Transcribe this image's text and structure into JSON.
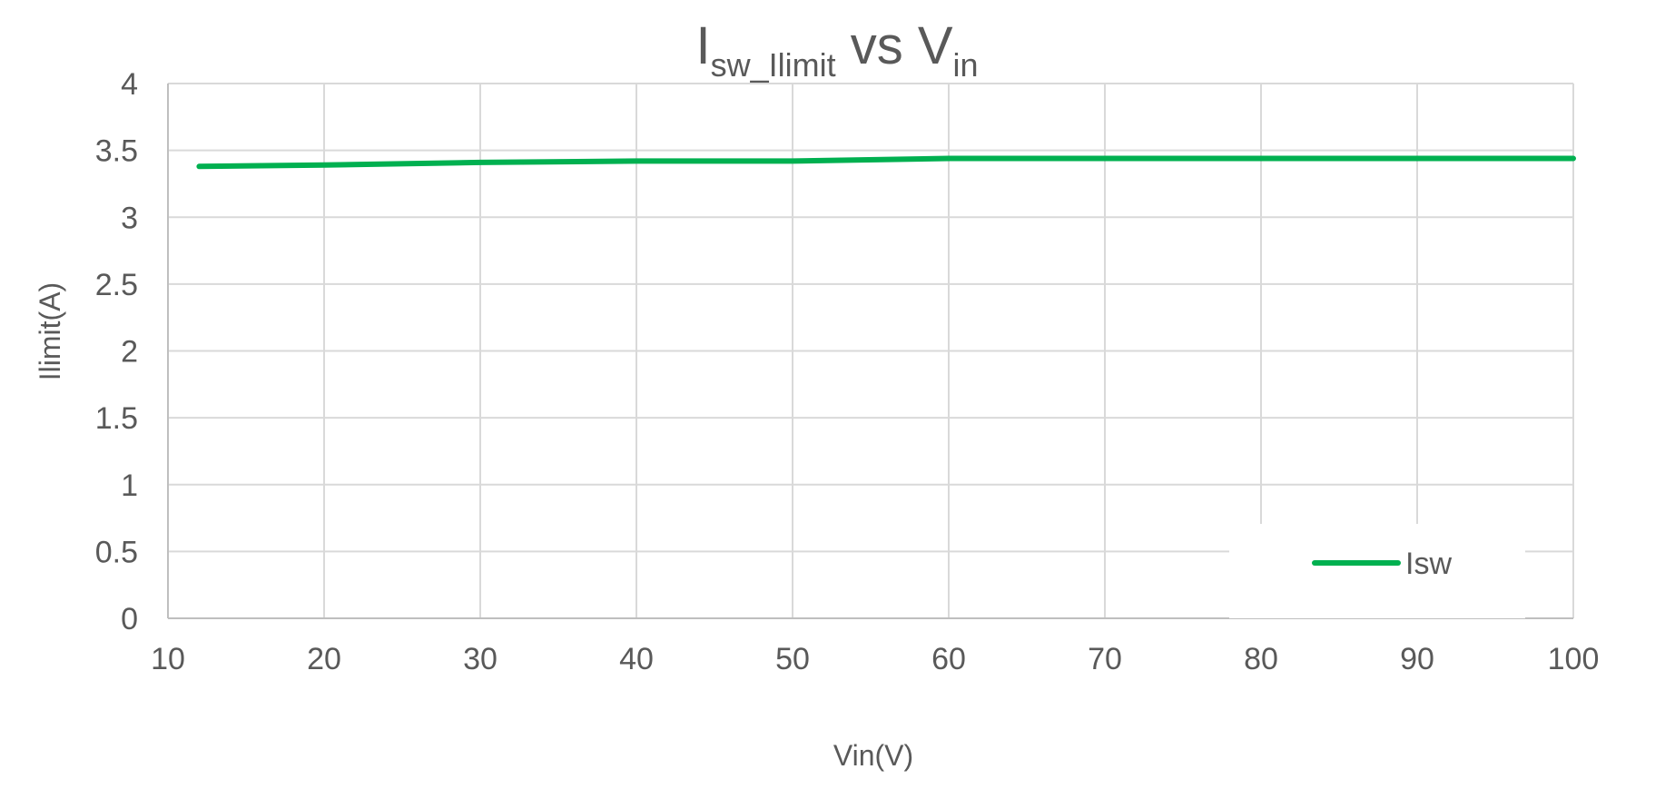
{
  "chart_data": {
    "type": "line",
    "title": {
      "main1": "I",
      "sub1": "sw_Ilimit",
      "main2": " vs V",
      "sub2": "in"
    },
    "xlabel": "Vin(V)",
    "ylabel": "Ilimit(A)",
    "xlim": [
      10,
      100
    ],
    "ylim": [
      0,
      4
    ],
    "x_ticks": [
      "10",
      "20",
      "30",
      "40",
      "50",
      "60",
      "70",
      "80",
      "90",
      "100"
    ],
    "y_ticks": [
      "0",
      "0.5",
      "1",
      "1.5",
      "2",
      "2.5",
      "3",
      "3.5",
      "4"
    ],
    "grid": true,
    "legend_position": "bottom-right",
    "series": [
      {
        "name": "Isw",
        "color": "#00B050",
        "x": [
          12,
          20,
          30,
          40,
          50,
          60,
          70,
          80,
          90,
          100
        ],
        "y": [
          3.38,
          3.39,
          3.41,
          3.42,
          3.42,
          3.44,
          3.44,
          3.44,
          3.44,
          3.44
        ]
      }
    ]
  }
}
